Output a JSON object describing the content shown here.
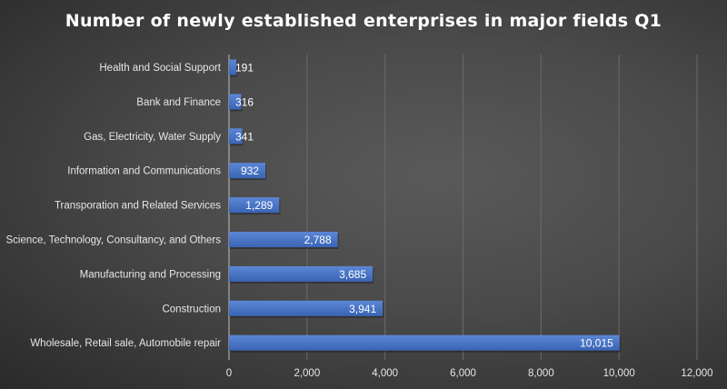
{
  "chart_data": {
    "type": "bar",
    "orientation": "horizontal",
    "title": "Number of newly established enterprises in major fields Q1",
    "categories": [
      "Health and Social Support",
      "Bank and Finance",
      "Gas, Electricity, Water Supply",
      "Information and Communications",
      "Transporation and Related Services",
      "Science, Technology, Consultancy, and Others",
      "Manufacturing and Processing",
      "Construction",
      "Wholesale, Retail sale, Automobile repair"
    ],
    "values": [
      191,
      316,
      341,
      932,
      1289,
      2788,
      3685,
      3941,
      10015
    ],
    "value_labels": [
      "191",
      "316",
      "341",
      "932",
      "1,289",
      "2,788",
      "3,685",
      "3,941",
      "10,015"
    ],
    "xlim": [
      0,
      12000
    ],
    "xticks": [
      0,
      2000,
      4000,
      6000,
      8000,
      10000,
      12000
    ],
    "xtick_labels": [
      "0",
      "2,000",
      "4,000",
      "6,000",
      "8,000",
      "10,000",
      "12,000"
    ],
    "xlabel": "",
    "ylabel": "",
    "grid": true,
    "legend": "none",
    "colors": {
      "bar": "#4472c4",
      "bar_light": "#5b87d6",
      "grid": "#6a6a6a",
      "text": "#e6e6e6"
    }
  }
}
